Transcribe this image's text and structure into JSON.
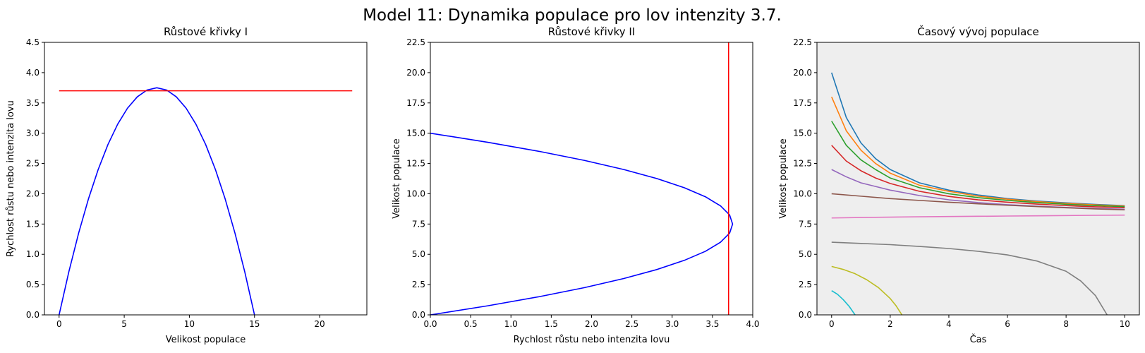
{
  "figure": {
    "suptitle": "Model 11: Dynamika populace pro lov intenzity 3.7."
  },
  "chart_data": [
    {
      "type": "line",
      "title": "Růstové křivky I",
      "xlabel": "Velikost populace",
      "ylabel": "Rychlost růstu nebo intenzita lovu",
      "xlim": [
        -1.125,
        23.625
      ],
      "ylim": [
        0,
        4.5
      ],
      "xticks": [
        0,
        5,
        10,
        15,
        20
      ],
      "xtick_labels": [
        "0",
        "5",
        "10",
        "15",
        "20"
      ],
      "yticks": [
        0,
        0.5,
        1,
        1.5,
        2,
        2.5,
        3,
        3.5,
        4,
        4.5
      ],
      "ytick_labels": [
        "0.0",
        "0.5",
        "1.0",
        "1.5",
        "2.0",
        "2.5",
        "3.0",
        "3.5",
        "4.0",
        "4.5"
      ],
      "background": "#ffffff",
      "grid": false,
      "series": [
        {
          "color": "#0000ff",
          "x": [
            0,
            0.75,
            1.5,
            2.25,
            3,
            3.75,
            4.5,
            5.25,
            6,
            6.75,
            7.5,
            8.25,
            9,
            9.75,
            10.5,
            11.25,
            12,
            12.75,
            13.5,
            14.25,
            15
          ],
          "y": [
            0,
            0.713,
            1.35,
            1.913,
            2.4,
            2.813,
            3.15,
            3.413,
            3.6,
            3.713,
            3.75,
            3.713,
            3.6,
            3.413,
            3.15,
            2.813,
            2.4,
            1.913,
            1.35,
            0.713,
            0
          ]
        },
        {
          "color": "#ff0000",
          "x": [
            0,
            22.5
          ],
          "y": [
            3.7,
            3.7
          ]
        }
      ]
    },
    {
      "type": "line",
      "title": "Růstové křivky II",
      "xlabel": "Rychlost růstu nebo intenzita lovu",
      "ylabel": "Velikost populace",
      "xlim": [
        0,
        4
      ],
      "ylim": [
        0,
        22.5
      ],
      "xticks": [
        0,
        0.5,
        1,
        1.5,
        2,
        2.5,
        3,
        3.5,
        4
      ],
      "xtick_labels": [
        "0.0",
        "0.5",
        "1.0",
        "1.5",
        "2.0",
        "2.5",
        "3.0",
        "3.5",
        "4.0"
      ],
      "yticks": [
        0,
        2.5,
        5,
        7.5,
        10,
        12.5,
        15,
        17.5,
        20,
        22.5
      ],
      "ytick_labels": [
        "0.0",
        "2.5",
        "5.0",
        "7.5",
        "10.0",
        "12.5",
        "15.0",
        "17.5",
        "20.0",
        "22.5"
      ],
      "background": "#ffffff",
      "grid": false,
      "series": [
        {
          "color": "#0000ff",
          "x": [
            0,
            0.713,
            1.35,
            1.913,
            2.4,
            2.813,
            3.15,
            3.413,
            3.6,
            3.713,
            3.75,
            3.713,
            3.6,
            3.413,
            3.15,
            2.813,
            2.4,
            1.913,
            1.35,
            0.713,
            0
          ],
          "y": [
            0,
            0.75,
            1.5,
            2.25,
            3,
            3.75,
            4.5,
            5.25,
            6,
            6.75,
            7.5,
            8.25,
            9,
            9.75,
            10.5,
            11.25,
            12,
            12.75,
            13.5,
            14.25,
            15
          ]
        },
        {
          "color": "#ff0000",
          "x": [
            3.7,
            3.7
          ],
          "y": [
            0,
            22.5
          ]
        }
      ]
    },
    {
      "type": "line",
      "title": "Časový vývoj populace",
      "xlabel": "Čas",
      "ylabel": "Velikost populace",
      "xlim": [
        -0.5,
        10.5
      ],
      "ylim": [
        0,
        22.5
      ],
      "xticks": [
        0,
        2,
        4,
        6,
        8,
        10
      ],
      "xtick_labels": [
        "0",
        "2",
        "4",
        "6",
        "8",
        "10"
      ],
      "yticks": [
        0,
        2.5,
        5,
        7.5,
        10,
        12.5,
        15,
        17.5,
        20,
        22.5
      ],
      "ytick_labels": [
        "0.0",
        "2.5",
        "5.0",
        "7.5",
        "10.0",
        "12.5",
        "15.0",
        "17.5",
        "20.0",
        "22.5"
      ],
      "background": "#eeeeee",
      "grid": false,
      "series": [
        {
          "color": "#1f77b4",
          "x": [
            0,
            0.5,
            1,
            1.5,
            2,
            3,
            4,
            5,
            6,
            7,
            8,
            9,
            10
          ],
          "y": [
            20,
            16.3,
            14.2,
            12.9,
            12.0,
            10.9,
            10.3,
            9.9,
            9.6,
            9.4,
            9.25,
            9.12,
            9.02
          ]
        },
        {
          "color": "#ff7f0e",
          "x": [
            0,
            0.5,
            1,
            1.5,
            2,
            3,
            4,
            5,
            6,
            7,
            8,
            9,
            10
          ],
          "y": [
            18,
            15.2,
            13.6,
            12.5,
            11.7,
            10.7,
            10.2,
            9.8,
            9.55,
            9.35,
            9.2,
            9.08,
            8.98
          ]
        },
        {
          "color": "#2ca02c",
          "x": [
            0,
            0.5,
            1,
            1.5,
            2,
            3,
            4,
            5,
            6,
            7,
            8,
            9,
            10
          ],
          "y": [
            16,
            14.0,
            12.8,
            12.0,
            11.3,
            10.5,
            10.0,
            9.68,
            9.45,
            9.27,
            9.13,
            9.02,
            8.93
          ]
        },
        {
          "color": "#d62728",
          "x": [
            0,
            0.5,
            1,
            1.5,
            2,
            3,
            4,
            5,
            6,
            7,
            8,
            9,
            10
          ],
          "y": [
            14,
            12.7,
            11.9,
            11.3,
            10.85,
            10.2,
            9.78,
            9.5,
            9.3,
            9.15,
            9.02,
            8.92,
            8.85
          ]
        },
        {
          "color": "#9467bd",
          "x": [
            0,
            0.5,
            1,
            1.5,
            2,
            3,
            4,
            5,
            6,
            7,
            8,
            9,
            10
          ],
          "y": [
            12,
            11.4,
            10.9,
            10.6,
            10.3,
            9.85,
            9.5,
            9.27,
            9.1,
            8.97,
            8.87,
            8.79,
            8.72
          ]
        },
        {
          "color": "#8c564b",
          "x": [
            0,
            1,
            2,
            3,
            4,
            5,
            6,
            7,
            8,
            9,
            10
          ],
          "y": [
            10,
            9.8,
            9.6,
            9.45,
            9.3,
            9.17,
            9.05,
            8.94,
            8.84,
            8.75,
            8.67
          ]
        },
        {
          "color": "#e377c2",
          "x": [
            0,
            1,
            2,
            3,
            4,
            5,
            6,
            7,
            8,
            9,
            10
          ],
          "y": [
            8.0,
            8.04,
            8.07,
            8.1,
            8.12,
            8.14,
            8.16,
            8.18,
            8.2,
            8.22,
            8.24
          ]
        },
        {
          "color": "#7f7f7f",
          "x": [
            0,
            1,
            2,
            3,
            4,
            5,
            6,
            7,
            8,
            8.5,
            9,
            9.4
          ],
          "y": [
            6.0,
            5.9,
            5.8,
            5.65,
            5.48,
            5.25,
            4.95,
            4.45,
            3.6,
            2.8,
            1.6,
            0
          ]
        },
        {
          "color": "#bcbd22",
          "x": [
            0,
            0.4,
            0.8,
            1.2,
            1.6,
            2.0,
            2.2,
            2.4
          ],
          "y": [
            4.0,
            3.75,
            3.4,
            2.9,
            2.25,
            1.35,
            0.75,
            0
          ]
        },
        {
          "color": "#17becf",
          "x": [
            0,
            0.2,
            0.4,
            0.6,
            0.8
          ],
          "y": [
            2.0,
            1.7,
            1.25,
            0.7,
            0
          ]
        }
      ]
    }
  ]
}
